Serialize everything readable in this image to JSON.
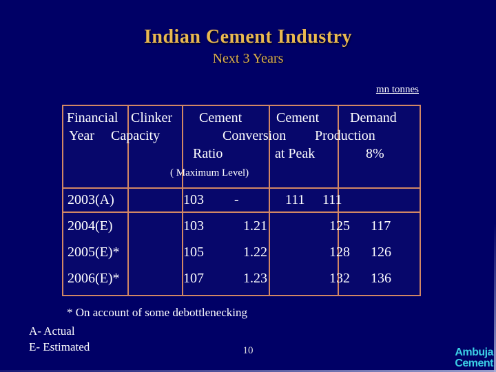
{
  "slide": {
    "title": "Indian Cement Industry",
    "subtitle": "Next 3 Years",
    "units_label": "mn tonnes",
    "page_number": "10",
    "logo": {
      "line1": "Ambuja",
      "line2": "Cement"
    },
    "footnotes": {
      "asterisk": "* On account of some debottlenecking",
      "a": "A- Actual",
      "e": "E- Estimated"
    }
  },
  "table": {
    "header": {
      "financial": "Financial",
      "year": "Year",
      "clinker": "Clinker",
      "capacity": "Capacity",
      "cement_conv": "Cement",
      "conversion": "Conversion",
      "ratio": "Ratio",
      "max_note": "( Maximum Level)",
      "cement_prod": "Cement",
      "production": "Production",
      "at_peak": "at Peak",
      "demand": "Demand",
      "demand_pct": "8%"
    },
    "rows": [
      {
        "year": "2003(A)",
        "clinker": "103",
        "ratio": "-",
        "production": "111",
        "demand": "111"
      },
      {
        "year": "2004(E)",
        "clinker": "103",
        "ratio": "1.21",
        "production": "125",
        "demand": "117"
      },
      {
        "year": "2005(E)*",
        "clinker": "105",
        "ratio": "1.22",
        "production": "128",
        "demand": "126"
      },
      {
        "year": "2006(E)*",
        "clinker": "107",
        "ratio": "1.23",
        "production": "132",
        "demand": "136"
      }
    ]
  },
  "colors": {
    "bg": "#000066",
    "border": "#d28764",
    "cellbg": "#07076b",
    "title_gold": "#e9b850",
    "subtitle_gold": "#d9ad52",
    "text_white": "#ffffff",
    "logo_cyan": "#3bcfe6",
    "page_gray": "#dddddd"
  }
}
